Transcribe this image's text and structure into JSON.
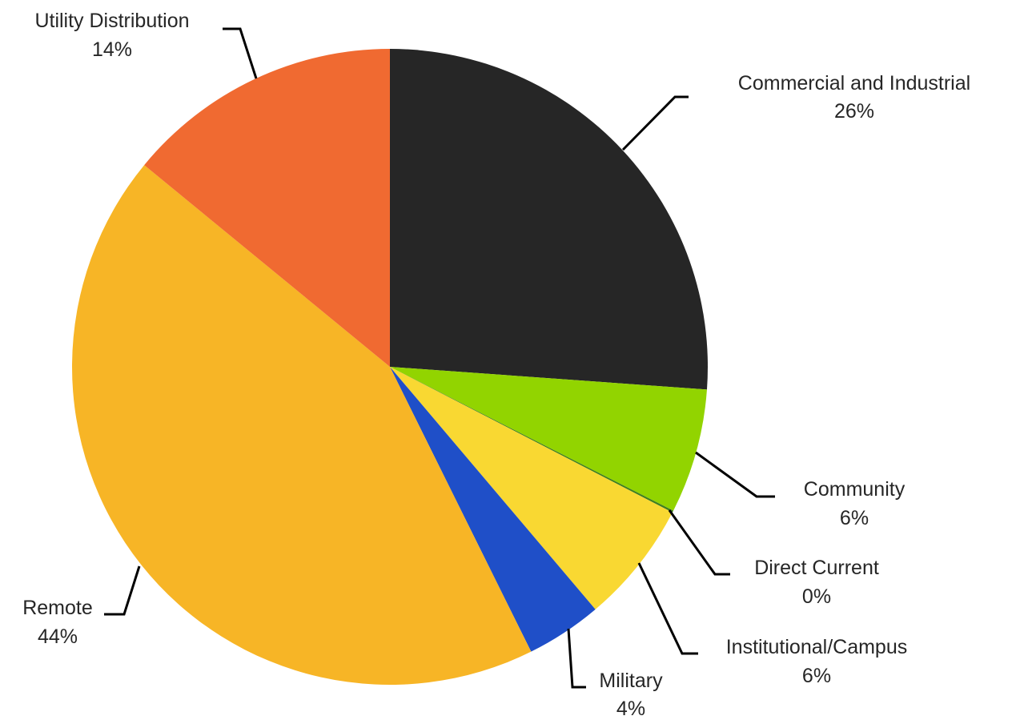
{
  "chart_data": {
    "type": "pie",
    "title": "",
    "slices": [
      {
        "label": "Commercial and Industrial",
        "value": 26.4,
        "pct_label": "26%",
        "color": "#262626"
      },
      {
        "label": "Community",
        "value": 6.4,
        "pct_label": "6%",
        "color": "#92d400"
      },
      {
        "label": "Direct Current",
        "value": 0.1,
        "pct_label": "0%",
        "color": "#3f7f1f"
      },
      {
        "label": "Institutional/Campus",
        "value": 6.3,
        "pct_label": "6%",
        "color": "#f9d832"
      },
      {
        "label": "Military",
        "value": 3.9,
        "pct_label": "4%",
        "color": "#1f4fc8"
      },
      {
        "label": "Remote",
        "value": 43.7,
        "pct_label": "44%",
        "color": "#f7b526"
      },
      {
        "label": "Utility Distribution",
        "value": 14.2,
        "pct_label": "14%",
        "color": "#f06a31"
      }
    ],
    "legend": "none (data labels with leader lines)"
  }
}
